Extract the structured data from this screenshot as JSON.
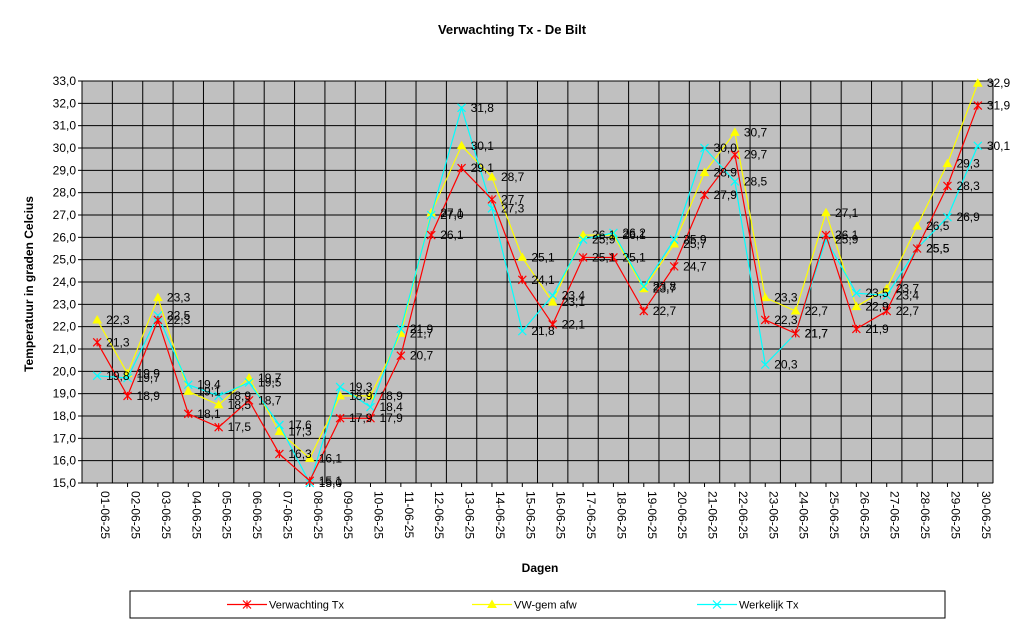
{
  "chart_data": {
    "type": "line",
    "title": "Verwachting Tx - De Bilt",
    "xlabel": "Dagen",
    "ylabel": "Temperatuur in graden Celcius",
    "ylim": [
      15.0,
      33.0
    ],
    "ytick_step": 1.0,
    "grid": true,
    "legend_position": "bottom",
    "plot_background": "#c0c0c0",
    "categories": [
      "01-06-25",
      "02-06-25",
      "03-06-25",
      "04-06-25",
      "05-06-25",
      "06-06-25",
      "07-06-25",
      "08-06-25",
      "09-06-25",
      "10-06-25",
      "11-06-25",
      "12-06-25",
      "13-06-25",
      "14-06-25",
      "15-06-25",
      "16-06-25",
      "17-06-25",
      "18-06-25",
      "19-06-25",
      "20-06-25",
      "21-06-25",
      "22-06-25",
      "23-06-25",
      "24-06-25",
      "25-06-25",
      "26-06-25",
      "27-06-25",
      "28-06-25",
      "29-06-25",
      "30-06-25"
    ],
    "series": [
      {
        "name": "Verwachting Tx",
        "color": "#ff0000",
        "marker": "star",
        "values": [
          21.3,
          18.9,
          22.3,
          18.1,
          17.5,
          18.7,
          16.3,
          15.1,
          17.9,
          17.9,
          20.7,
          26.1,
          29.1,
          27.7,
          24.1,
          22.1,
          25.1,
          25.1,
          22.7,
          24.7,
          27.9,
          29.7,
          22.3,
          21.7,
          26.1,
          21.9,
          22.7,
          25.5,
          28.3,
          31.9
        ],
        "labels": [
          "21,3",
          "18,9",
          "22,3",
          "18,1",
          "17,5",
          "18,7",
          "16,3",
          "15,1",
          "17,9",
          "17,9",
          "20,7",
          "26,1",
          "29,1",
          "27,7",
          "24,1",
          "22,1",
          "25,1",
          "25,1",
          "22,7",
          "24,7",
          "27,9",
          "29,7",
          "22,3",
          "21,7",
          "26,1",
          "21,9",
          "22,7",
          "25,5",
          "28,3",
          "31,9"
        ]
      },
      {
        "name": "VW-gem afw",
        "color": "#ffff00",
        "marker": "triangle",
        "values": [
          22.3,
          19.9,
          23.3,
          19.1,
          18.5,
          19.7,
          17.3,
          16.1,
          18.9,
          18.9,
          21.7,
          27.1,
          30.1,
          28.7,
          25.1,
          23.1,
          26.1,
          26.1,
          23.7,
          25.7,
          28.9,
          30.7,
          23.3,
          22.7,
          27.1,
          22.9,
          23.7,
          26.5,
          29.3,
          32.9
        ],
        "labels": [
          "22,3",
          "19,9",
          "23,3",
          "19,1",
          "18,5",
          "19,7",
          "17,3",
          "16,1",
          "18,9",
          "18,9",
          "21,7",
          "27,1",
          "30,1",
          "28,7",
          "25,1",
          "23,1",
          "26,1",
          "26,1",
          "23,7",
          "25,7",
          "28,9",
          "30,7",
          "23,3",
          "22,7",
          "27,1",
          "22,9",
          "23,7",
          "26,5",
          "29,3",
          "32,9"
        ]
      },
      {
        "name": "Werkelijk Tx",
        "color": "#00ffff",
        "marker": "x",
        "values": [
          19.8,
          19.7,
          22.5,
          19.4,
          18.9,
          19.5,
          17.6,
          15.0,
          19.3,
          18.4,
          21.9,
          27.0,
          31.8,
          27.3,
          21.8,
          23.4,
          25.9,
          26.2,
          23.8,
          25.9,
          30.0,
          28.5,
          20.3,
          21.7,
          25.9,
          23.5,
          23.4,
          25.5,
          26.9,
          30.1
        ],
        "labels": [
          "19,8",
          "19,7",
          "22,5",
          "19,4",
          "18,9",
          "19,5",
          "17,6",
          "15,0",
          "19,3",
          "18,4",
          "21,9",
          "27,0",
          "31,8",
          "27,3",
          "21,8",
          "23,4",
          "25,9",
          "26,2",
          "23,8",
          "25,9",
          "30,0",
          "28,5",
          "20,3",
          "21,7",
          "25,9",
          "23,5",
          "23,4",
          "25,5",
          "26,9",
          "30,1"
        ]
      }
    ]
  }
}
